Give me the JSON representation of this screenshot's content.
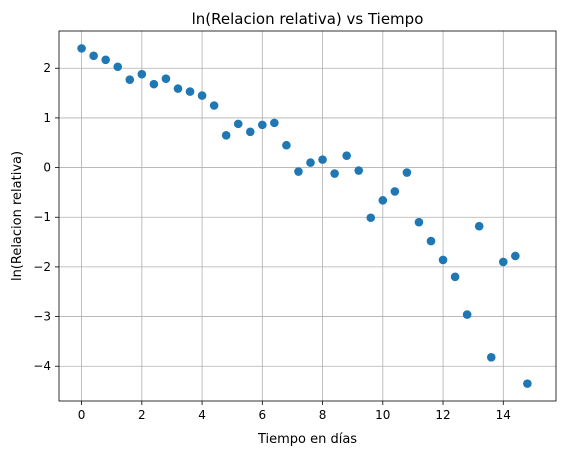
{
  "chart_data": {
    "type": "scatter",
    "title": "ln(Relacion relativa) vs Tiempo",
    "xlabel": "Tiempo en días",
    "ylabel": "ln(Relacion relativa)",
    "xlim": [
      -0.75,
      15.75
    ],
    "ylim": [
      -4.7,
      2.75
    ],
    "xticks": [
      0,
      2,
      4,
      6,
      8,
      10,
      12,
      14
    ],
    "yticks": [
      2,
      1,
      0,
      -1,
      -2,
      -3,
      -4
    ],
    "ytick_labels": [
      "2",
      "1",
      "0",
      "−1",
      "−2",
      "−3",
      "−4"
    ],
    "grid": true,
    "marker_color": "#1f77b4",
    "series": [
      {
        "name": "ln(Relacion relativa)",
        "x": [
          0.0,
          0.4,
          0.8,
          1.2,
          1.6,
          2.0,
          2.4,
          2.8,
          3.2,
          3.6,
          4.0,
          4.4,
          4.8,
          5.2,
          5.6,
          6.0,
          6.4,
          6.8,
          7.2,
          7.6,
          8.0,
          8.4,
          8.8,
          9.2,
          9.6,
          10.0,
          10.4,
          10.8,
          11.2,
          11.6,
          12.0,
          12.4,
          12.8,
          13.2,
          13.6,
          14.0,
          14.4,
          14.8
        ],
        "y": [
          2.4,
          2.25,
          2.17,
          2.03,
          1.77,
          1.88,
          1.68,
          1.79,
          1.59,
          1.53,
          1.45,
          1.25,
          0.65,
          0.88,
          0.72,
          0.86,
          0.9,
          0.45,
          -0.08,
          0.1,
          0.16,
          -0.12,
          0.24,
          -0.06,
          -1.01,
          -0.66,
          -0.48,
          -0.1,
          -1.1,
          -1.48,
          -1.86,
          -2.2,
          -2.96,
          -1.18,
          -3.82,
          -1.9,
          -1.78,
          -4.35
        ]
      }
    ]
  }
}
